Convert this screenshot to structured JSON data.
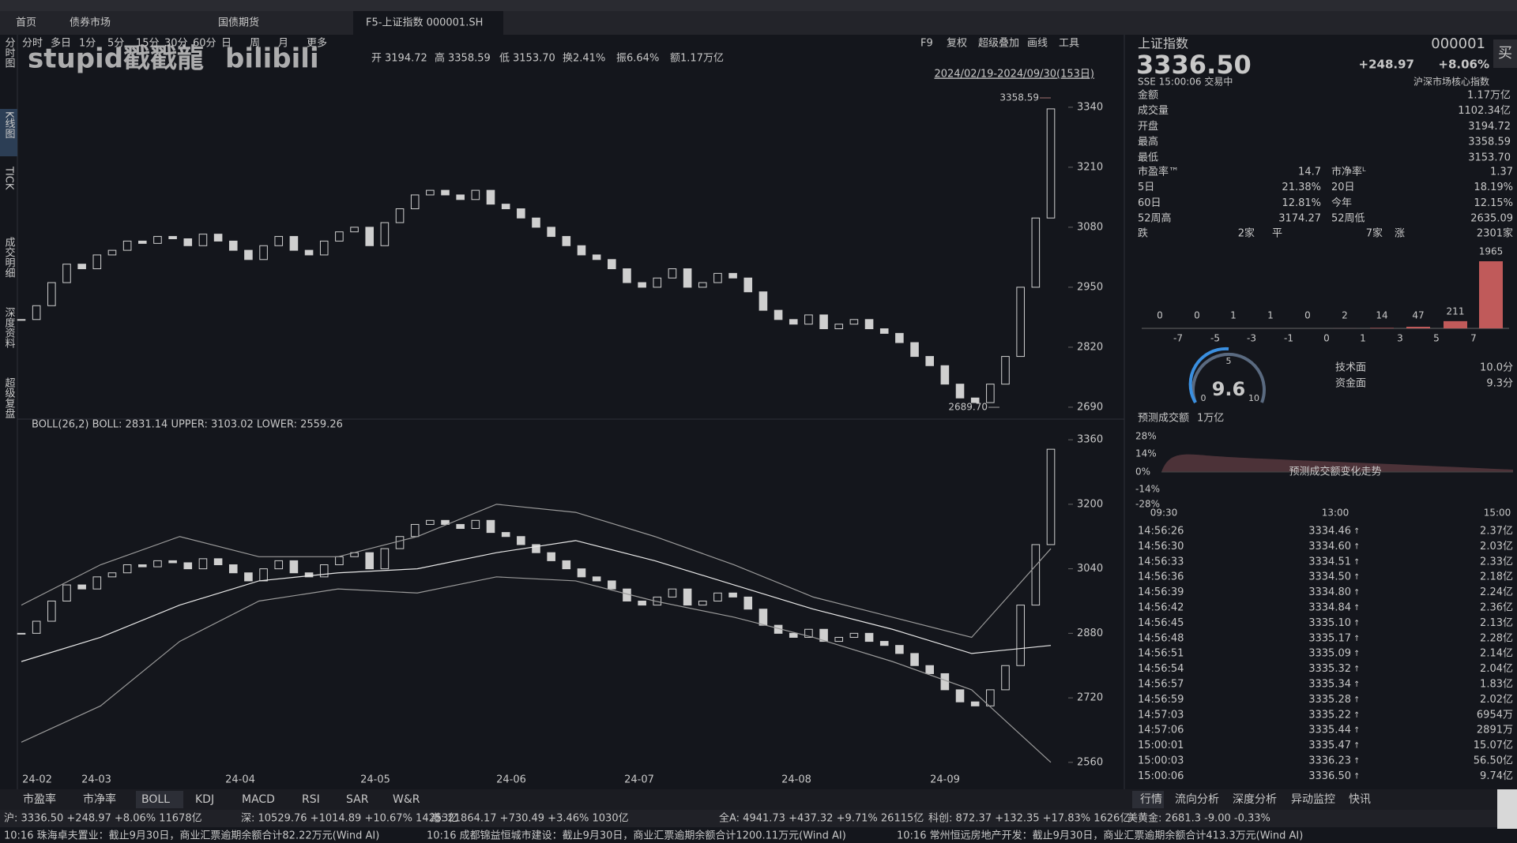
{
  "tabs": [
    "首页",
    "债券市场",
    "国债期货",
    "F5-上证指数 000001.SH"
  ],
  "toolbar": {
    "periods": [
      "分时",
      "多日",
      "1分",
      "5分",
      "15分",
      "30分",
      "60分",
      "日",
      "周",
      "月",
      "更多"
    ],
    "tools": [
      "F9",
      "复权",
      "超级叠加",
      "画线",
      "工具"
    ]
  },
  "quote_bar": {
    "open_label": "开",
    "open": "3194.72",
    "high_label": "高",
    "high": "3358.59",
    "low_label": "低",
    "low": "3153.70",
    "turnover": "换2.41%",
    "amplitude": "振6.64%",
    "amount": "额1.17万亿"
  },
  "watermark": [
    "stupid戳戳龍",
    "bilibili"
  ],
  "date_range": "2024/02/19-2024/09/30(153日)",
  "side_nav": [
    "分时图",
    "K线图",
    "TICK",
    "成交明细",
    "深度资料",
    "超级复盘"
  ],
  "chart_data": [
    {
      "type": "candlestick",
      "color": "#cfcfcf",
      "ylim": [
        2671,
        3374
      ],
      "yticks": [
        2690,
        2820,
        2950,
        3080,
        3210,
        3340
      ],
      "x_labels": [
        "24-02",
        "24-03",
        "24-04",
        "24-05",
        "24-06",
        "24-07",
        "24-08",
        "24-09"
      ],
      "closes": [
        2880,
        2910,
        2960,
        3000,
        2990,
        3020,
        3030,
        3050,
        3045,
        3060,
        3055,
        3040,
        3065,
        3050,
        3030,
        3010,
        3040,
        3060,
        3030,
        3020,
        3050,
        3070,
        3080,
        3040,
        3090,
        3120,
        3150,
        3160,
        3150,
        3140,
        3160,
        3130,
        3120,
        3100,
        3080,
        3060,
        3040,
        3020,
        3010,
        2990,
        2960,
        2950,
        2970,
        2990,
        2950,
        2960,
        2980,
        2970,
        2940,
        2900,
        2880,
        2870,
        2890,
        2860,
        2870,
        2880,
        2860,
        2850,
        2830,
        2800,
        2780,
        2740,
        2710,
        2700,
        2740,
        2800,
        2950,
        3100,
        3336.5
      ],
      "annotations": [
        "3358.59",
        "2689.70"
      ]
    },
    {
      "type": "candlestick",
      "title": "BOLL(26,2) BOLL: 2831.14 UPPER: 3103.02 LOWER: 2559.26",
      "color": "#cfcfcf",
      "ylim": [
        2546,
        3372
      ],
      "yticks": [
        2560,
        2720,
        2880,
        3040,
        3200,
        3360
      ],
      "closes": [
        2880,
        2910,
        2960,
        3000,
        2990,
        3020,
        3030,
        3050,
        3045,
        3060,
        3055,
        3040,
        3065,
        3050,
        3030,
        3010,
        3040,
        3060,
        3030,
        3020,
        3050,
        3070,
        3080,
        3040,
        3090,
        3120,
        3150,
        3160,
        3150,
        3140,
        3160,
        3130,
        3120,
        3100,
        3080,
        3060,
        3040,
        3020,
        3010,
        2990,
        2960,
        2950,
        2970,
        2990,
        2950,
        2960,
        2980,
        2970,
        2940,
        2900,
        2880,
        2870,
        2890,
        2860,
        2870,
        2880,
        2860,
        2850,
        2830,
        2800,
        2780,
        2740,
        2710,
        2700,
        2740,
        2800,
        2950,
        3100,
        3336.5
      ],
      "series": [
        {
          "name": "UPPER",
          "color": "#9a9a9a",
          "values": [
            2950,
            3050,
            3120,
            3070,
            3070,
            3120,
            3200,
            3180,
            3120,
            3050,
            2970,
            2920,
            2870,
            3090
          ]
        },
        {
          "name": "BOLL",
          "color": "#e8e8e8",
          "values": [
            2810,
            2870,
            2950,
            3010,
            3030,
            3040,
            3080,
            3110,
            3060,
            3000,
            2940,
            2890,
            2830,
            2850
          ]
        },
        {
          "name": "LOWER",
          "color": "#9a9a9a",
          "values": [
            2610,
            2700,
            2860,
            2960,
            2990,
            2980,
            3020,
            3010,
            2960,
            2920,
            2870,
            2810,
            2740,
            2560
          ]
        }
      ]
    },
    {
      "type": "bar",
      "color": "#c05a5a",
      "ylim": [
        0,
        1965
      ],
      "values": [
        0,
        0,
        1,
        1,
        0,
        2,
        14,
        47,
        211,
        1965
      ],
      "x_labels": [
        "-7",
        "-5",
        "-3",
        "-1",
        "0",
        "1",
        "3",
        "5",
        "7"
      ]
    }
  ],
  "indicator_tabs": [
    "市盈率",
    "市净率",
    "BOLL",
    "KDJ",
    "MACD",
    "RSI",
    "SAR",
    "W&R"
  ],
  "quote": {
    "name": "上证指数",
    "code": "000001",
    "price": "3336.50",
    "change": "+248.97",
    "pct": "+8.06%",
    "status": "SSE 15:00:06 交易中",
    "tag": "沪深市场核心指数",
    "buy": "买"
  },
  "stats": [
    [
      "金额",
      "1.17万亿"
    ],
    [
      "成交量",
      "1102.34亿"
    ],
    [
      "开盘",
      "3194.72"
    ],
    [
      "最高",
      "3358.59"
    ],
    [
      "最低",
      "3153.70"
    ]
  ],
  "pairs": [
    [
      "市盈率™",
      "14.7",
      "市净率ᴸ",
      "1.37"
    ],
    [
      "5日",
      "21.38%",
      "20日",
      "18.19%"
    ],
    [
      "60日",
      "12.81%",
      "今年",
      "12.15%"
    ],
    [
      "52周高",
      "3174.27",
      "52周低",
      "2635.09"
    ]
  ],
  "breadth": [
    "跌",
    "2家",
    "平",
    "7家",
    "涨",
    "2301家"
  ],
  "gauge": {
    "value": "9.6",
    "min": "0",
    "mid": "5",
    "max": "10",
    "rows": [
      [
        "技术面",
        "10.0分"
      ],
      [
        "资金面",
        "9.3分"
      ]
    ]
  },
  "forecast": {
    "title": "预测成交额",
    "amount": "1万亿",
    "yticks": [
      "28%",
      "14%",
      "0%",
      "-14%",
      "-28%"
    ],
    "xticks": [
      "09:30",
      "13:00",
      "15:00"
    ],
    "note": "预测成交额变化走势"
  },
  "trades": [
    [
      "14:56:26",
      "3334.46",
      "2.37亿"
    ],
    [
      "14:56:30",
      "3334.60",
      "2.03亿"
    ],
    [
      "14:56:33",
      "3334.51",
      "2.33亿"
    ],
    [
      "14:56:36",
      "3334.50",
      "2.18亿"
    ],
    [
      "14:56:39",
      "3334.80",
      "2.24亿"
    ],
    [
      "14:56:42",
      "3334.84",
      "2.36亿"
    ],
    [
      "14:56:45",
      "3335.10",
      "2.13亿"
    ],
    [
      "14:56:48",
      "3335.17",
      "2.28亿"
    ],
    [
      "14:56:51",
      "3335.09",
      "2.14亿"
    ],
    [
      "14:56:54",
      "3335.32",
      "2.04亿"
    ],
    [
      "14:56:57",
      "3335.34",
      "1.83亿"
    ],
    [
      "14:56:59",
      "3335.28",
      "2.02亿"
    ],
    [
      "14:57:03",
      "3335.22",
      "6954万"
    ],
    [
      "14:57:06",
      "3335.44",
      "2891万"
    ],
    [
      "15:00:01",
      "3335.47",
      "15.07亿"
    ],
    [
      "15:00:03",
      "3336.23",
      "56.50亿"
    ],
    [
      "15:00:06",
      "3336.50",
      "9.74亿"
    ]
  ],
  "right_tabs": [
    "行情",
    "流向分析",
    "深度分析",
    "异动监控",
    "快讯"
  ],
  "status": [
    "沪: 3336.50 +248.97 +8.06% 11678亿",
    "深: 10529.76 +1014.89 +10.67% 14253亿",
    "港: 21864.17 +730.49 +3.46% 1030亿",
    "全A: 4941.73 +437.32 +9.71% 26115亿",
    "科创: 872.37 +132.35 +17.83% 1626亿",
    "美黄金: 2681.3 -9.00 -0.33%"
  ],
  "news": [
    "10:16 珠海卓夫置业：截止9月30日，商业汇票逾期余额合计82.22万元(Wind AI)",
    "10:16 成都锦益恒城市建设：截止9月30日，商业汇票逾期余额合计1200.11万元(Wind AI)",
    "10:16 常州恒远房地产开发：截止9月30日，商业汇票逾期余额合计413.3万元(Wind AI)"
  ]
}
